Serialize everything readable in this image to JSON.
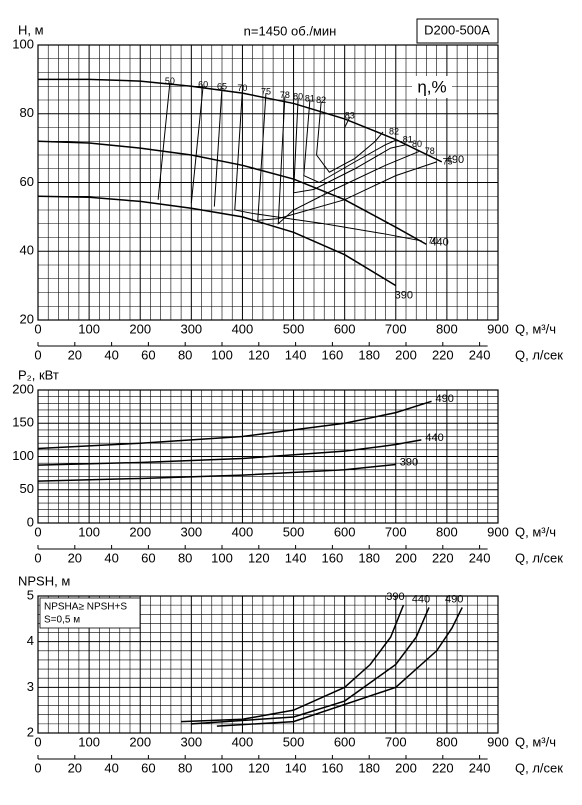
{
  "chart_data": [
    {
      "type": "line",
      "ylabel": "H, м",
      "subtitle": "n=1450 об./мин",
      "model": "D200-500A",
      "efficiency_label": "η,%",
      "xlabel": "Q, м³/ч",
      "x2label": "Q, л/сек",
      "xlim": [
        0,
        900
      ],
      "xticks": [
        0,
        100,
        200,
        300,
        400,
        500,
        600,
        700,
        800,
        900
      ],
      "x2lim": [
        0,
        250
      ],
      "x2ticks": [
        0,
        20,
        40,
        60,
        80,
        100,
        120,
        140,
        160,
        180,
        200,
        220,
        240
      ],
      "ylim": [
        20,
        100
      ],
      "yticks": [
        20,
        40,
        60,
        80,
        100
      ],
      "grid": true,
      "minor_divisions": [
        5,
        5
      ],
      "color": "#000000",
      "series": [
        {
          "name": "490",
          "x": [
            0,
            100,
            200,
            300,
            400,
            500,
            600,
            700,
            790
          ],
          "values": [
            90,
            90,
            89.5,
            88,
            86,
            83,
            78.5,
            72.5,
            66
          ]
        },
        {
          "name": "440",
          "x": [
            0,
            100,
            200,
            300,
            400,
            500,
            600,
            700,
            760
          ],
          "values": [
            72,
            71.5,
            70,
            68,
            65,
            61,
            55,
            47,
            42
          ]
        },
        {
          "name": "390",
          "x": [
            0,
            100,
            200,
            300,
            400,
            500,
            600,
            700
          ],
          "values": [
            56,
            55.7,
            54.5,
            52.5,
            50,
            45.5,
            39,
            30
          ]
        }
      ],
      "efficiency_lines": [
        {
          "name": "50",
          "x": [
            258,
            235
          ],
          "values": [
            89,
            55
          ]
        },
        {
          "name": "60",
          "x": [
            323,
            300
          ],
          "values": [
            88,
            54
          ]
        },
        {
          "name": "65",
          "x": [
            360,
            345
          ],
          "values": [
            87.5,
            53
          ]
        },
        {
          "name": "70",
          "x": [
            400,
            385,
            420,
            560,
            680,
            751
          ],
          "values": [
            87,
            52,
            51,
            48,
            45,
            43
          ]
        },
        {
          "name": "75",
          "x": [
            446,
            430,
            470,
            600,
            700,
            780
          ],
          "values": [
            86,
            49,
            49.5,
            55,
            62,
            66
          ]
        },
        {
          "name": "78",
          "x": [
            483,
            470,
            500,
            580,
            680,
            745
          ],
          "values": [
            85,
            48,
            52,
            58,
            65,
            69
          ]
        },
        {
          "name": "80",
          "x": [
            509,
            500,
            540,
            620,
            690,
            720
          ],
          "values": [
            84.5,
            57,
            58,
            64,
            70,
            71
          ]
        },
        {
          "name": "81",
          "x": [
            532,
            520,
            550,
            620,
            680,
            702
          ],
          "values": [
            84,
            62,
            60,
            66,
            71,
            72.4
          ]
        },
        {
          "name": "82",
          "x": [
            554,
            545,
            570,
            620,
            660,
            675
          ],
          "values": [
            83.5,
            68,
            63,
            67,
            72,
            74.7
          ]
        },
        {
          "name": "83",
          "x": [
            610,
            600
          ],
          "values": [
            79,
            76
          ]
        }
      ]
    },
    {
      "type": "line",
      "ylabel": "P₂, кВт",
      "xlabel": "Q, м³/ч",
      "x2label": "Q, л/сек",
      "xlim": [
        0,
        900
      ],
      "xticks": [
        0,
        100,
        200,
        300,
        400,
        500,
        600,
        700,
        800,
        900
      ],
      "x2lim": [
        0,
        250
      ],
      "x2ticks": [
        0,
        20,
        40,
        60,
        80,
        100,
        120,
        140,
        160,
        180,
        200,
        220,
        240
      ],
      "ylim": [
        0,
        200
      ],
      "yticks": [
        0,
        50,
        100,
        150,
        200
      ],
      "grid": true,
      "minor_divisions": [
        5,
        5
      ],
      "color": "#000000",
      "series": [
        {
          "name": "490",
          "x": [
            0,
            200,
            400,
            600,
            700,
            770
          ],
          "values": [
            112,
            120,
            130,
            150,
            166,
            183
          ]
        },
        {
          "name": "440",
          "x": [
            0,
            200,
            400,
            600,
            700,
            750
          ],
          "values": [
            87,
            91,
            97,
            108,
            118,
            125
          ]
        },
        {
          "name": "390",
          "x": [
            0,
            200,
            400,
            600,
            700
          ],
          "values": [
            63,
            67,
            72,
            80,
            88
          ]
        }
      ]
    },
    {
      "type": "line",
      "ylabel": "NPSH, м",
      "xlabel": "Q, м³/ч",
      "x2label": "Q, л/сек",
      "xlim": [
        0,
        900
      ],
      "xticks": [
        0,
        100,
        200,
        300,
        400,
        500,
        600,
        700,
        800,
        900
      ],
      "x2lim": [
        0,
        250
      ],
      "x2ticks": [
        0,
        20,
        40,
        60,
        80,
        100,
        120,
        140,
        160,
        180,
        200,
        220,
        240
      ],
      "ylim": [
        2,
        5
      ],
      "yticks": [
        2,
        3,
        4,
        5
      ],
      "grid": true,
      "minor_divisions": [
        5,
        5
      ],
      "color": "#000000",
      "annotations": [
        "NPSHA≥ NPSH+S",
        "S=0,5 м"
      ],
      "series": [
        {
          "name": "390",
          "x": [
            280,
            400,
            500,
            600,
            650,
            690,
            715
          ],
          "values": [
            2.25,
            2.3,
            2.5,
            3.0,
            3.5,
            4.1,
            4.8
          ]
        },
        {
          "name": "440",
          "x": [
            300,
            500,
            600,
            700,
            740,
            765
          ],
          "values": [
            2.2,
            2.35,
            2.7,
            3.5,
            4.1,
            4.75
          ]
        },
        {
          "name": "490",
          "x": [
            350,
            500,
            700,
            780,
            810,
            830
          ],
          "values": [
            2.15,
            2.25,
            3.0,
            3.8,
            4.3,
            4.75
          ]
        }
      ]
    }
  ]
}
